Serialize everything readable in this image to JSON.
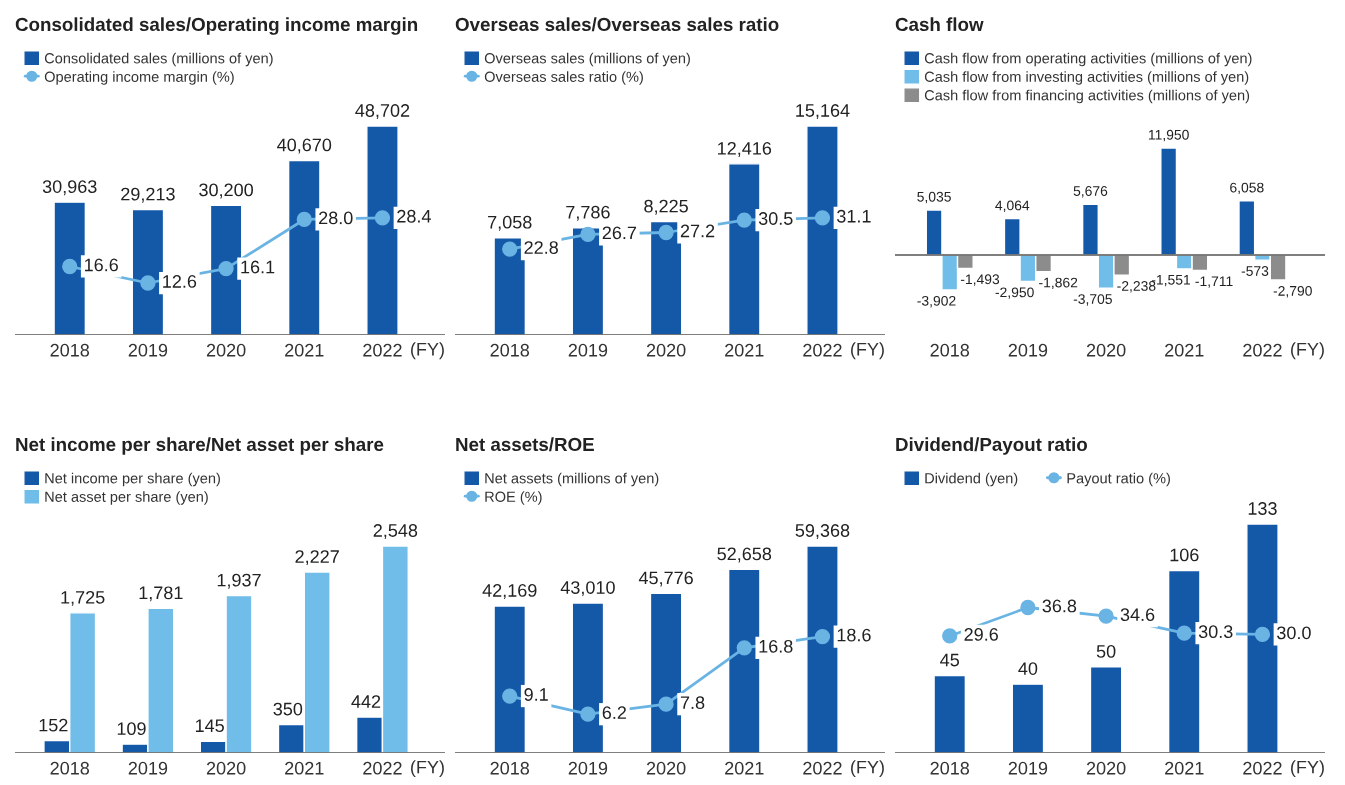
{
  "chart_data": [
    {
      "type": "bar",
      "title": "Consolidated sales/Operating income margin",
      "xlabel": "(FY)",
      "categories": [
        "2018",
        "2019",
        "2020",
        "2021",
        "2022"
      ],
      "legend": "top left",
      "tick_labels": "x",
      "marker": "circle",
      "series": [
        {
          "name": "Consolidated sales (millions of yen)",
          "color": "#1458a8",
          "values": [
            30963,
            29213,
            30200,
            40670,
            48702
          ],
          "value_labels": [
            "30,963",
            "29,213",
            "30,200",
            "40,670",
            "48,702"
          ]
        },
        {
          "name": "Operating income margin (%)",
          "type": "line",
          "axis": "y2",
          "color": "#6ab4e4",
          "values": [
            16.6,
            12.6,
            16.1,
            28.0,
            28.4
          ],
          "value_labels": [
            "16.6",
            "12.6",
            "16.1",
            "28.0",
            "28.4"
          ]
        }
      ]
    },
    {
      "type": "bar",
      "title": "Overseas sales/Overseas sales ratio",
      "xlabel": "(FY)",
      "categories": [
        "2018",
        "2019",
        "2020",
        "2021",
        "2022"
      ],
      "legend": "top left",
      "tick_labels": "x",
      "marker": "circle",
      "series": [
        {
          "name": "Overseas sales (millions of yen)",
          "color": "#1458a8",
          "values": [
            7058,
            7786,
            8225,
            12416,
            15164
          ],
          "value_labels": [
            "7,058",
            "7,786",
            "8,225",
            "12,416",
            "15,164"
          ]
        },
        {
          "name": "Overseas sales ratio (%)",
          "type": "line",
          "axis": "y2",
          "color": "#6ab4e4",
          "values": [
            22.8,
            26.7,
            27.2,
            30.5,
            31.1
          ],
          "value_labels": [
            "22.8",
            "26.7",
            "27.2",
            "30.5",
            "31.1"
          ]
        }
      ]
    },
    {
      "type": "bar",
      "title": "Cash flow",
      "xlabel": "(FY)",
      "categories": [
        "2018",
        "2019",
        "2020",
        "2021",
        "2022"
      ],
      "legend": "top left",
      "tick_labels": "x",
      "series": [
        {
          "name": "Cash flow from operating activities (millions of yen)",
          "color": "#1458a8",
          "values": [
            5035,
            4064,
            5676,
            11950,
            6058
          ],
          "value_labels": [
            "5,035",
            "4,064",
            "5,676",
            "11,950",
            "6,058"
          ]
        },
        {
          "name": "Cash flow from investing activities (millions of yen)",
          "color": "#6fbde8",
          "values": [
            -3902,
            -2950,
            -3705,
            -1551,
            -573
          ],
          "value_labels": [
            "-3,902",
            "-2,950",
            "-3,705",
            "-1,551",
            "-573"
          ]
        },
        {
          "name": "Cash flow from financing activities (millions of yen)",
          "color": "#8c8c8c",
          "values": [
            -1493,
            -1862,
            -2238,
            -1711,
            -2790
          ],
          "value_labels": [
            "-1,493",
            "-1,862",
            "-2,238",
            "-1,711",
            "-2,790"
          ]
        }
      ]
    },
    {
      "type": "bar",
      "title": "Net income per share/Net asset per share",
      "xlabel": "(FY)",
      "categories": [
        "2018",
        "2019",
        "2020",
        "2021",
        "2022"
      ],
      "legend": "top left",
      "tick_labels": "x",
      "series": [
        {
          "name": "Net income per share (yen)",
          "color": "#1458a8",
          "values": [
            152,
            109,
            145,
            350,
            442
          ],
          "value_labels": [
            "152",
            "109",
            "145",
            "350",
            "442"
          ]
        },
        {
          "name": "Net asset per share (yen)",
          "color": "#6fbde8",
          "values": [
            1725,
            1781,
            1937,
            2227,
            2548
          ],
          "value_labels": [
            "1,725",
            "1,781",
            "1,937",
            "2,227",
            "2,548"
          ]
        }
      ]
    },
    {
      "type": "bar",
      "title": "Net assets/ROE",
      "xlabel": "(FY)",
      "categories": [
        "2018",
        "2019",
        "2020",
        "2021",
        "2022"
      ],
      "legend": "top left",
      "tick_labels": "x",
      "marker": "circle",
      "series": [
        {
          "name": "Net assets (millions of yen)",
          "color": "#1458a8",
          "values": [
            42169,
            43010,
            45776,
            52658,
            59368
          ],
          "value_labels": [
            "42,169",
            "43,010",
            "45,776",
            "52,658",
            "59,368"
          ]
        },
        {
          "name": "ROE (%)",
          "type": "line",
          "axis": "y2",
          "color": "#6ab4e4",
          "values": [
            9.1,
            6.2,
            7.8,
            16.8,
            18.6
          ],
          "value_labels": [
            "9.1",
            "6.2",
            "7.8",
            "16.8",
            "18.6"
          ]
        }
      ]
    },
    {
      "type": "bar",
      "title": "Dividend/Payout ratio",
      "xlabel": "(FY)",
      "categories": [
        "2018",
        "2019",
        "2020",
        "2021",
        "2022"
      ],
      "legend": "top left",
      "tick_labels": "x",
      "marker": "circle",
      "series": [
        {
          "name": "Dividend (yen)",
          "color": "#1458a8",
          "values": [
            45,
            40,
            50,
            106,
            133
          ],
          "value_labels": [
            "45",
            "40",
            "50",
            "106",
            "133"
          ]
        },
        {
          "name": "Payout ratio (%)",
          "type": "line",
          "axis": "y2",
          "color": "#6ab4e4",
          "values": [
            29.6,
            36.8,
            34.6,
            30.3,
            30.0
          ],
          "value_labels": [
            "29.6",
            "36.8",
            "34.6",
            "30.3",
            "30.0"
          ]
        }
      ]
    }
  ]
}
